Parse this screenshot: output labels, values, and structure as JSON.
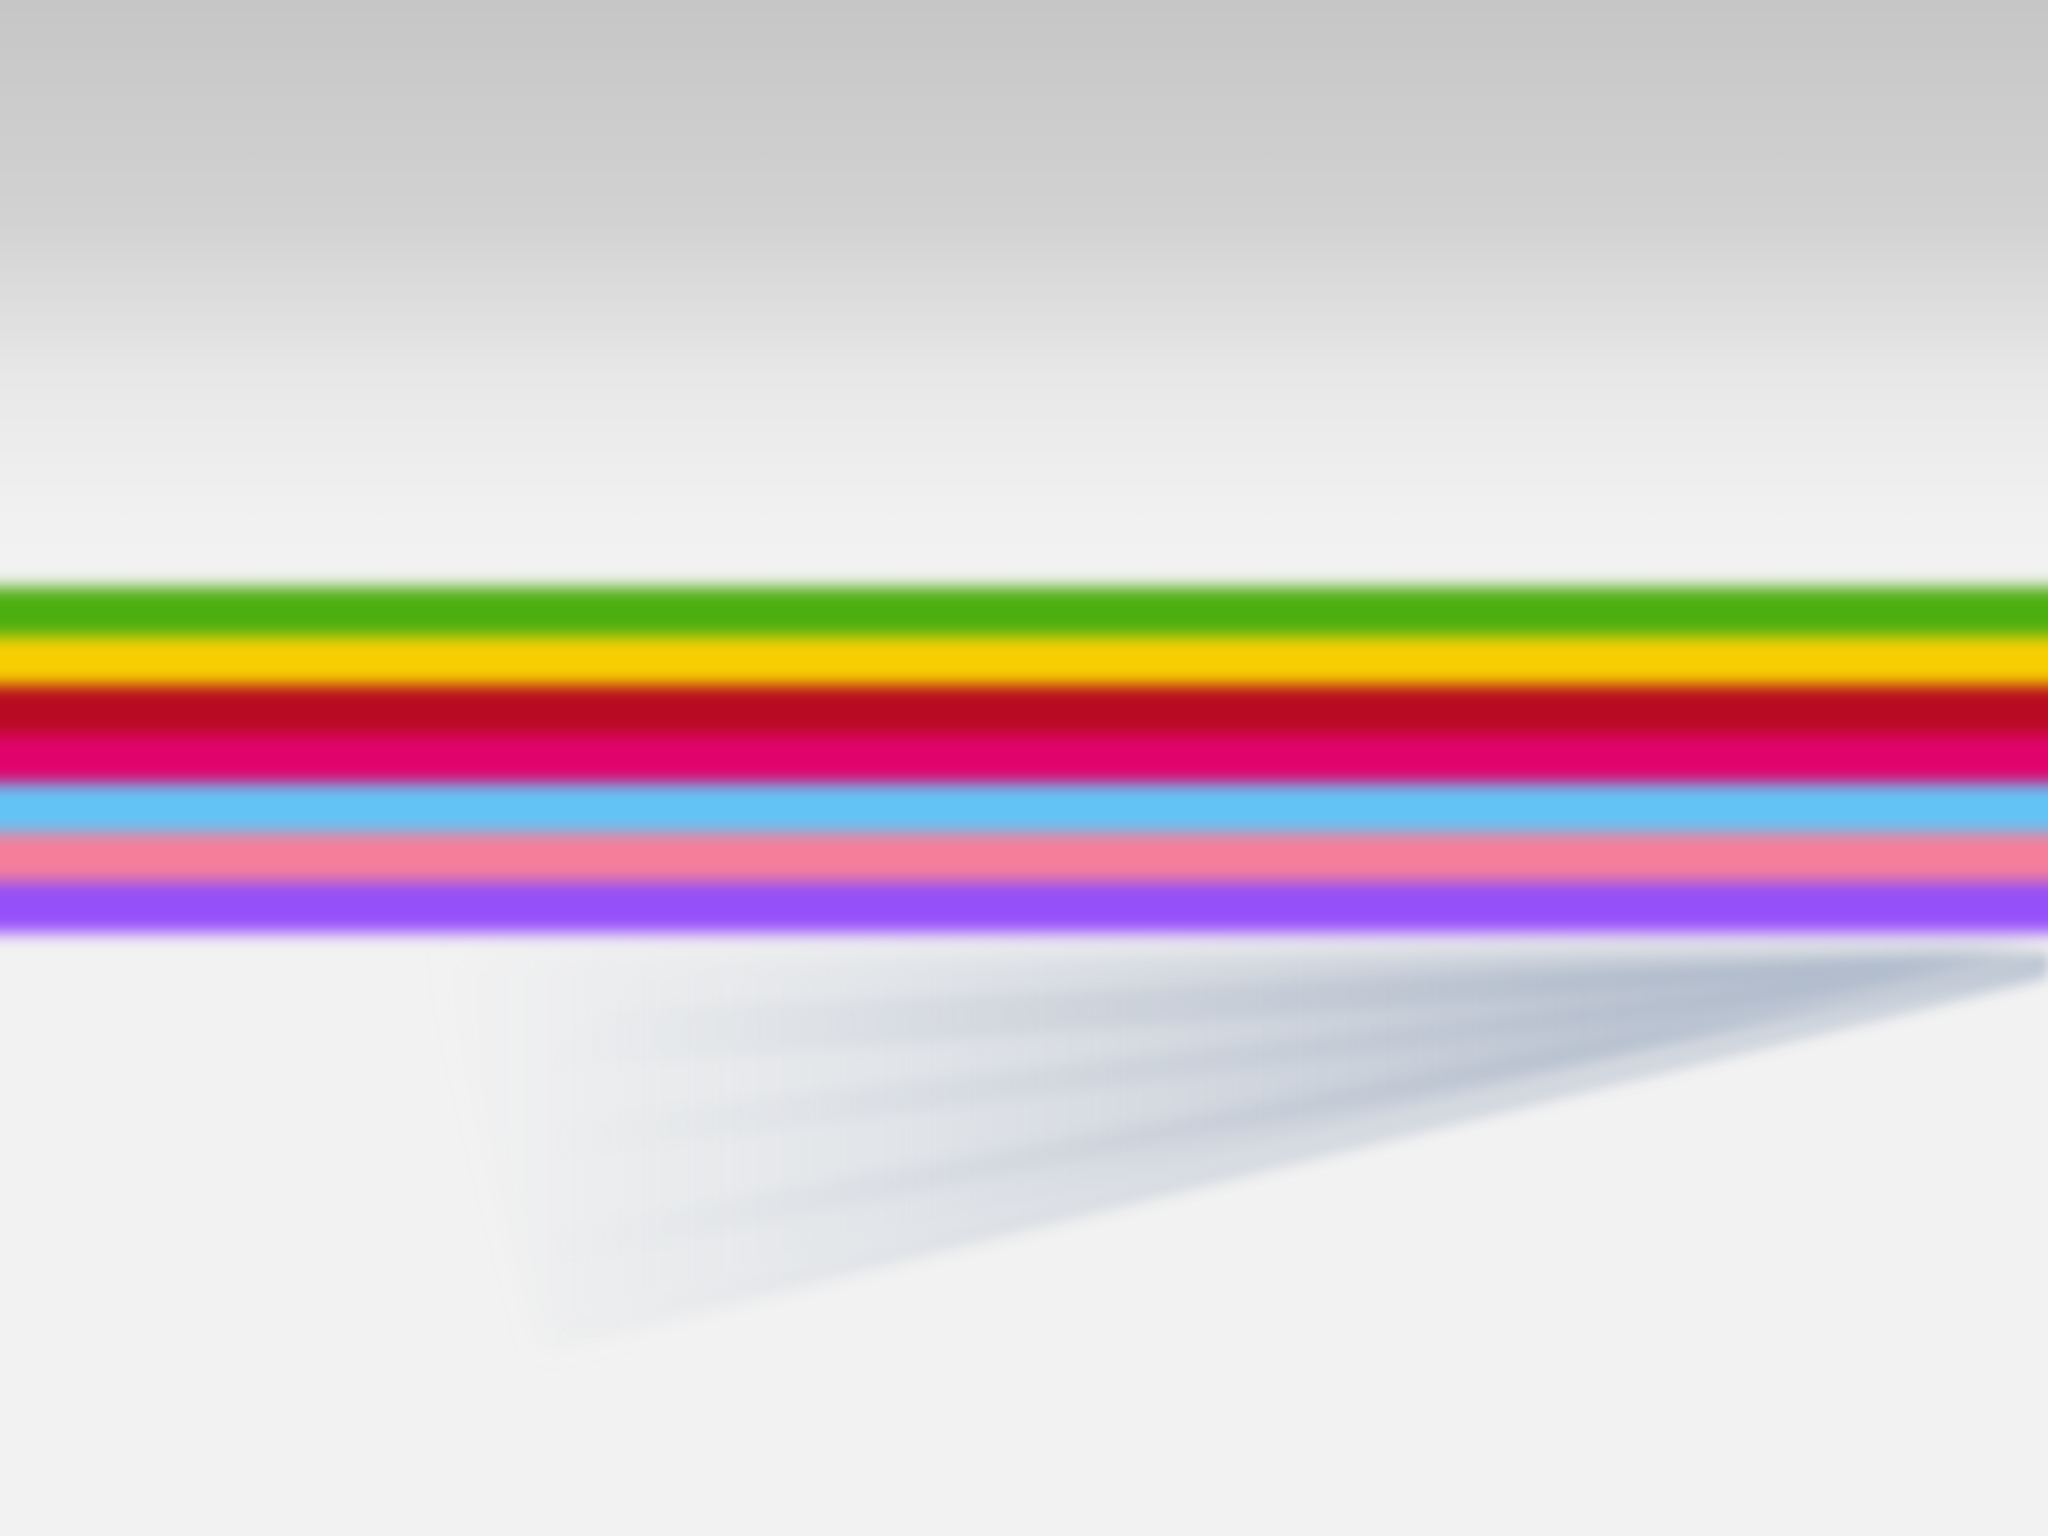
{
  "wallpaper": {
    "stripe_colors": [
      {
        "name": "green",
        "hex": "#4caf0f"
      },
      {
        "name": "yellow",
        "hex": "#f6cf02"
      },
      {
        "name": "red",
        "hex": "#b80a22"
      },
      {
        "name": "magenta",
        "hex": "#e0036c"
      },
      {
        "name": "sky",
        "hex": "#63c3f5"
      },
      {
        "name": "pink",
        "hex": "#f57e9a"
      },
      {
        "name": "violet",
        "hex": "#9650f9"
      }
    ],
    "shadow_color": "#a7b4c7",
    "background_top": "#c6c6c6",
    "background_bottom": "#f2f2f2"
  }
}
